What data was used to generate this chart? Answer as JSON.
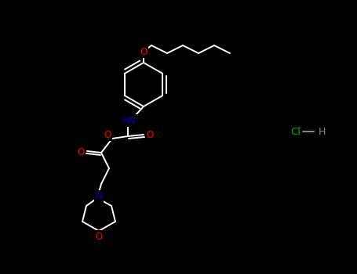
{
  "bg_color": "#000000",
  "bond_color": "#ffffff",
  "atom_colors": {
    "O": "#ff0000",
    "N": "#0000bb",
    "Cl": "#00aa00",
    "H": "#888888",
    "C": "#ffffff"
  },
  "figsize": [
    4.55,
    3.5
  ],
  "dpi": 100
}
